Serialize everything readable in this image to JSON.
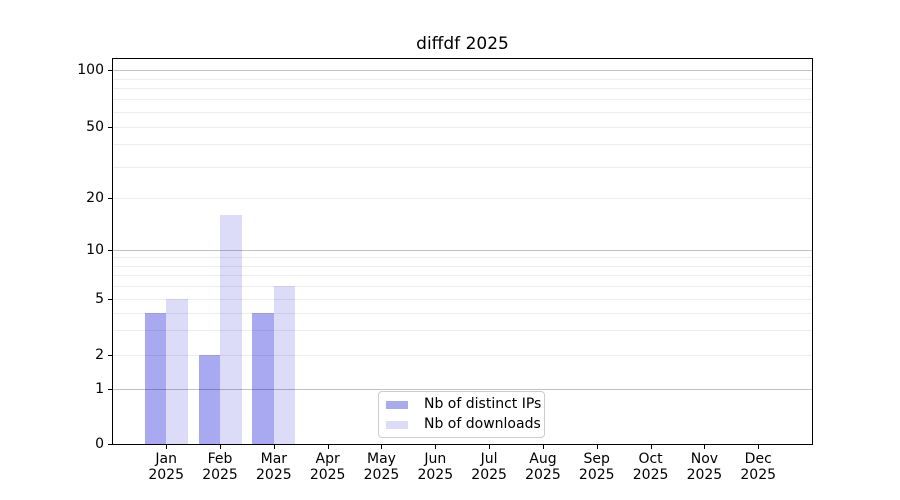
{
  "chart_data": {
    "type": "bar",
    "title": "diffdf 2025",
    "categories": [
      {
        "month": "Jan",
        "year": "2025"
      },
      {
        "month": "Feb",
        "year": "2025"
      },
      {
        "month": "Mar",
        "year": "2025"
      },
      {
        "month": "Apr",
        "year": "2025"
      },
      {
        "month": "May",
        "year": "2025"
      },
      {
        "month": "Jun",
        "year": "2025"
      },
      {
        "month": "Jul",
        "year": "2025"
      },
      {
        "month": "Aug",
        "year": "2025"
      },
      {
        "month": "Sep",
        "year": "2025"
      },
      {
        "month": "Oct",
        "year": "2025"
      },
      {
        "month": "Nov",
        "year": "2025"
      },
      {
        "month": "Dec",
        "year": "2025"
      }
    ],
    "series": [
      {
        "name": "Nb of distinct IPs",
        "color": "#a9a9f2",
        "values": [
          4,
          2,
          4,
          0,
          0,
          0,
          0,
          0,
          0,
          0,
          0,
          0
        ]
      },
      {
        "name": "Nb of downloads",
        "color": "#dcdcf8",
        "values": [
          5,
          16,
          6,
          0,
          0,
          0,
          0,
          0,
          0,
          0,
          0,
          0
        ]
      }
    ],
    "yticks": [
      0,
      1,
      2,
      5,
      10,
      20,
      50,
      100
    ],
    "minor_gridlines": [
      3,
      4,
      6,
      7,
      8,
      9,
      30,
      40,
      60,
      70,
      80,
      90
    ],
    "major_gridline_values": [
      1,
      10,
      100
    ],
    "ylim": [
      0,
      100
    ],
    "yscale": "symlog",
    "grid": true,
    "legend_position": "lower center",
    "colors": {
      "gridline_major": "#c2c2c2",
      "gridline_minor": "#ededed",
      "axis": "#000000",
      "legend_border": "#cccccc",
      "background": "#ffffff"
    }
  }
}
